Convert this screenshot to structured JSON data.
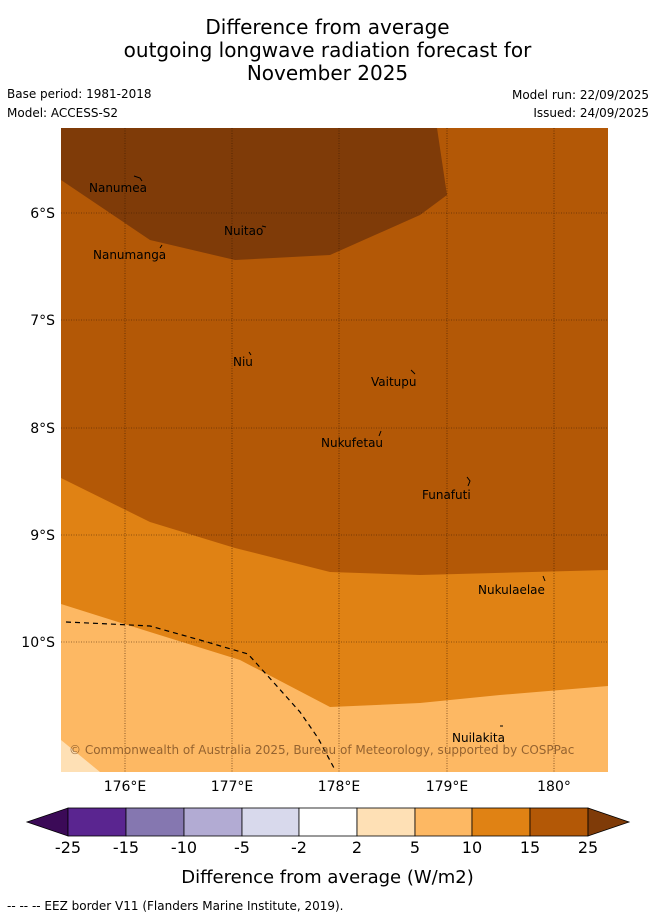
{
  "title": {
    "line1": "Difference from average",
    "line2": "outgoing longwave radiation forecast for",
    "line3": "November 2025"
  },
  "meta": {
    "base_period": "Base period: 1981-2018",
    "model": "Model: ACCESS-S2",
    "model_run": "Model run: 22/09/2025",
    "issued": "Issued: 24/09/2025"
  },
  "axes": {
    "lat_labels": [
      "6°S",
      "7°S",
      "8°S",
      "9°S",
      "10°S"
    ],
    "lon_labels": [
      "176°E",
      "177°E",
      "178°E",
      "179°E",
      "180°"
    ]
  },
  "places": [
    {
      "name": "Nanumea"
    },
    {
      "name": "Nuitao"
    },
    {
      "name": "Nanumanga"
    },
    {
      "name": "Niu"
    },
    {
      "name": "Vaitupu"
    },
    {
      "name": "Nukufetau"
    },
    {
      "name": "Funafuti"
    },
    {
      "name": "Nukulaelae"
    },
    {
      "name": "Nuilakita"
    }
  ],
  "copyright": "© Commonwealth of Australia 2025, Bureau of Meteorology, supported by COSPPac",
  "colorbar": {
    "ticks": [
      "-25",
      "-15",
      "-10",
      "-5",
      "-2",
      "2",
      "5",
      "10",
      "15",
      "25"
    ],
    "colors": {
      "below_min": "#3b0a57",
      "c1": "#5a2590",
      "c2": "#8577b0",
      "c3": "#b2abd3",
      "c4": "#d8d9ec",
      "c5": "#ffffff",
      "c6": "#fee0b5",
      "c7": "#fdb863",
      "c8": "#e08214",
      "c9": "#b35806",
      "above_max": "#7f3b08"
    },
    "label": "Difference from average (W/m2)"
  },
  "footer": "-- -- -- EEZ border V11 (Flanders Marine Institute, 2019)."
}
